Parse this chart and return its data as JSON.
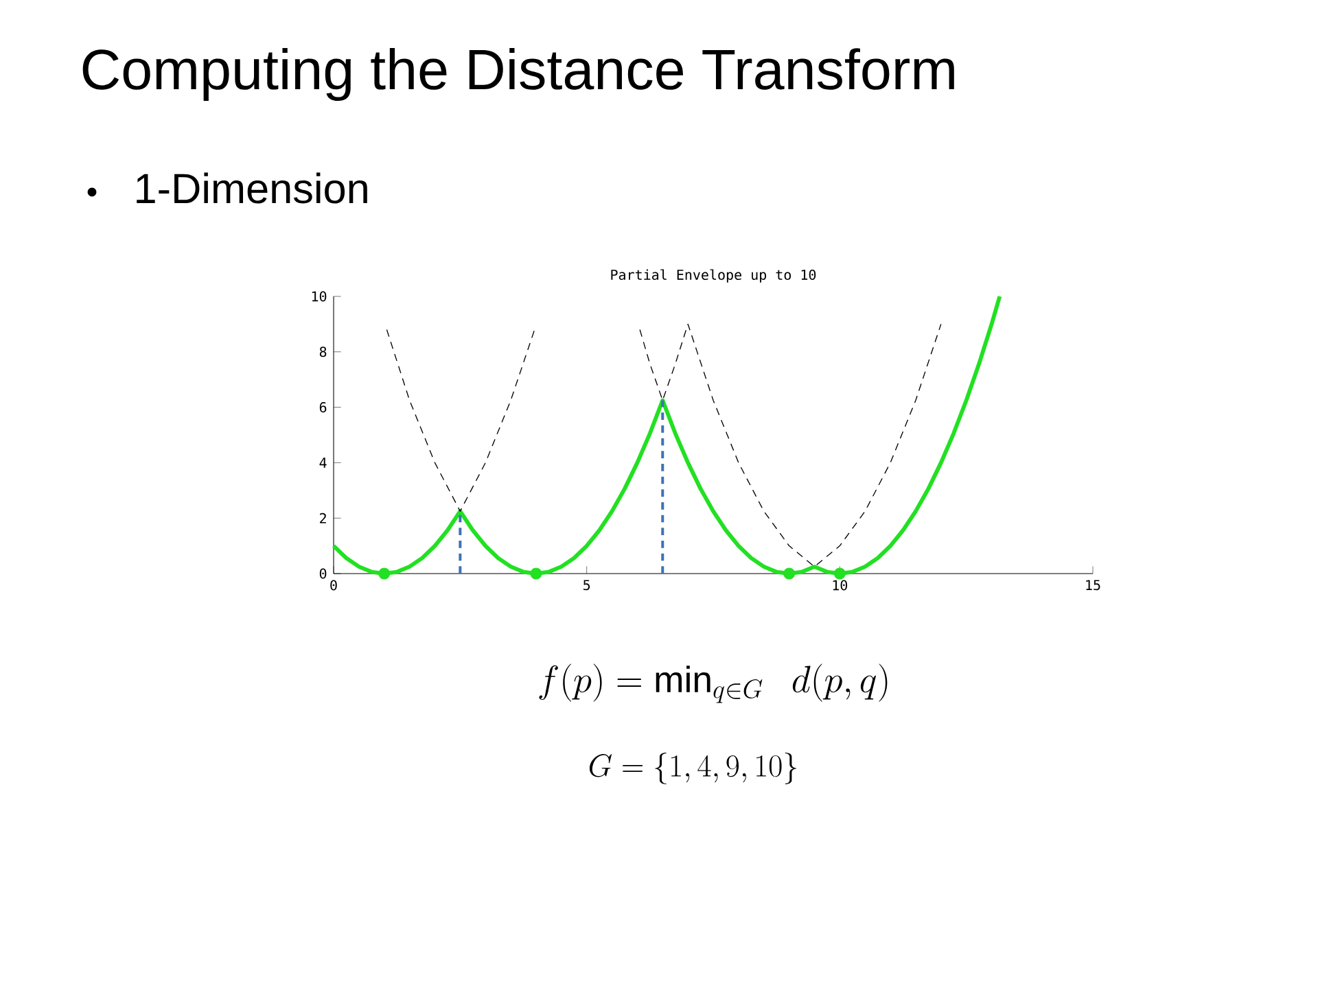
{
  "chart_data": {
    "type": "line",
    "title": "Computing the Distance Transform",
    "subtitle": "Partial Envelope up to 10",
    "annotations": [
      "1-Dimension",
      "f(p) = \\min_{q \\in G} \\;\\; d(p, q)",
      "G = \\{1, 4, 9, 10\\}"
    ],
    "xlim": [
      0,
      15
    ],
    "xticks": [
      0,
      5,
      10,
      15
    ],
    "ylim": [
      0,
      10
    ],
    "yticks": [
      0,
      2,
      4,
      6,
      8,
      10
    ],
    "series": [
      {
        "color": "#22e022",
        "line_style": "solid",
        "x": [
          0,
          0.25,
          0.5,
          0.75,
          1,
          1.25,
          1.5,
          1.75,
          2,
          2.25,
          2.5,
          2.75,
          3,
          3.25,
          3.5,
          3.75,
          4,
          4.25,
          4.5,
          4.75,
          5,
          5.25,
          5.5,
          5.75,
          6,
          6.25,
          6.5,
          6.75,
          7,
          7.25,
          7.5,
          7.75,
          8,
          8.25,
          8.5,
          8.75,
          9,
          9.25,
          9.5,
          9.75,
          10,
          10.25,
          10.5,
          10.75,
          11,
          11.25,
          11.5,
          11.75,
          12,
          12.25,
          12.5,
          12.75,
          13,
          13.16
        ],
        "values": [
          1,
          0.56,
          0.25,
          0.06,
          0,
          0.06,
          0.25,
          0.56,
          1,
          1.56,
          2.25,
          1.56,
          1,
          0.56,
          0.25,
          0.06,
          0,
          0.06,
          0.25,
          0.56,
          1,
          1.56,
          2.25,
          3.06,
          4,
          5.06,
          6.25,
          5.06,
          4,
          3.06,
          2.25,
          1.56,
          1,
          0.56,
          0.25,
          0.06,
          0,
          0.06,
          0.25,
          0.06,
          0,
          0.06,
          0.25,
          0.56,
          1,
          1.56,
          2.25,
          3.06,
          4,
          5.06,
          6.25,
          7.56,
          9,
          10
        ]
      },
      {
        "color": "#000000",
        "line_style": "dashed",
        "x": [
          1.05,
          1.5,
          2,
          2.5,
          3,
          3.5,
          3.97,
          null,
          6.05,
          6.25,
          6.5,
          6.75,
          7,
          7.5,
          8,
          8.5,
          9,
          9.5,
          10,
          10.5,
          11,
          11.5,
          12
        ],
        "values": [
          8.8,
          6.25,
          4,
          2.25,
          4,
          6.25,
          8.8,
          null,
          8.8,
          7.56,
          6.25,
          7.56,
          9,
          6.25,
          4,
          2.25,
          1,
          0.25,
          1,
          2.25,
          4,
          6.25,
          9
        ]
      },
      {
        "color": "#3d72b8",
        "line_style": "dashed",
        "x": [
          2.5,
          2.5,
          null,
          6.5,
          6.5
        ],
        "values": [
          0,
          2.25,
          null,
          0,
          6.25
        ]
      },
      {
        "type": "scatter",
        "color": "#22e022",
        "marker": "circle",
        "x": [
          1,
          4,
          9,
          10
        ],
        "values": [
          0,
          0,
          0,
          0
        ]
      }
    ]
  }
}
